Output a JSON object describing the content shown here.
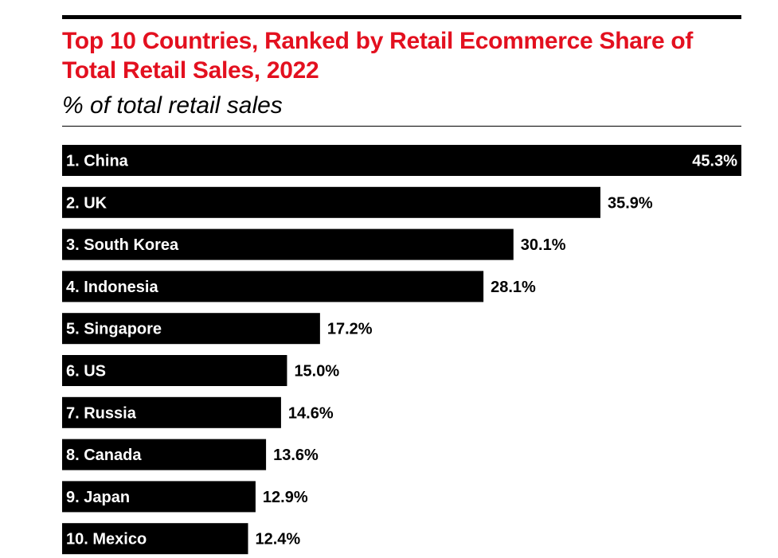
{
  "chart_data": {
    "type": "bar",
    "orientation": "horizontal",
    "title": "Top 10 Countries, Ranked by Retail Ecommerce Share of Total Retail Sales, 2022",
    "subtitle": "% of total retail sales",
    "categories": [
      "1. China",
      "2. UK",
      "3. South Korea",
      "4. Indonesia",
      "5. Singapore",
      "6. US",
      "7. Russia",
      "8. Canada",
      "9. Japan",
      "10. Mexico"
    ],
    "values": [
      45.3,
      35.9,
      30.1,
      28.1,
      17.2,
      15.0,
      14.6,
      13.6,
      12.9,
      12.4
    ],
    "value_labels": [
      "45.3%",
      "35.9%",
      "30.1%",
      "28.1%",
      "17.2%",
      "15.0%",
      "14.6%",
      "13.6%",
      "12.9%",
      "12.4%"
    ],
    "xlim": [
      0,
      45.3
    ],
    "grid": false,
    "legend": "none",
    "colors": {
      "title": "#e3101f",
      "bar": "#000000",
      "bar_text": "#ffffff",
      "value_text": "#000000"
    }
  }
}
